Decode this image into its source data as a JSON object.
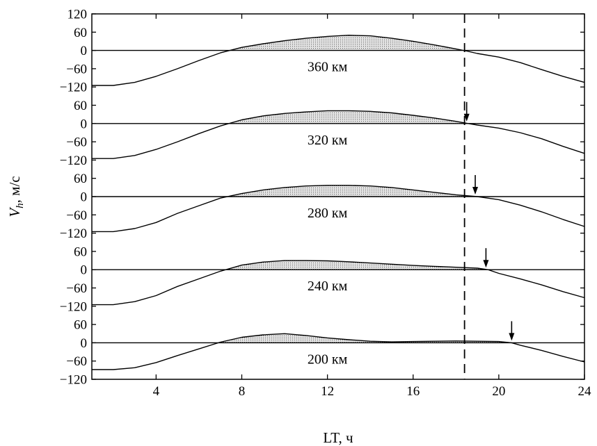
{
  "chart_data": {
    "type": "line",
    "title": "",
    "xlabel": "LT, ч",
    "ylabel_main": "V",
    "ylabel_sub": "h",
    "ylabel_unit": ", м/с",
    "xlim": [
      1,
      24
    ],
    "x_ticks": [
      4,
      8,
      12,
      16,
      20,
      24
    ],
    "ylim": [
      -120,
      60
    ],
    "top_tick": 120,
    "y_ticks": [
      -120,
      -60,
      0,
      60
    ],
    "shade_positive": true,
    "reference_line": {
      "x": 18.4,
      "style": "dashed"
    },
    "series": [
      {
        "name": "360 км",
        "arrow_x": null,
        "x": [
          1,
          2,
          3,
          4,
          5,
          6,
          7,
          8,
          9,
          10,
          11,
          12,
          13,
          14,
          15,
          16,
          17,
          18,
          18.5,
          19,
          20,
          21,
          22,
          23,
          24
        ],
        "y": [
          -115,
          -115,
          -105,
          -85,
          -60,
          -33,
          -8,
          10,
          22,
          32,
          40,
          46,
          50,
          48,
          40,
          30,
          18,
          5,
          -2,
          -10,
          -22,
          -40,
          -63,
          -85,
          -105
        ]
      },
      {
        "name": "320 км",
        "arrow_x": 18.5,
        "x": [
          1,
          2,
          3,
          4,
          5,
          6,
          7,
          8,
          9,
          10,
          11,
          12,
          13,
          14,
          15,
          16,
          17,
          18,
          18.5,
          19,
          20,
          21,
          22,
          23,
          24
        ],
        "y": [
          -115,
          -115,
          -105,
          -85,
          -60,
          -33,
          -8,
          12,
          25,
          33,
          38,
          42,
          42,
          40,
          35,
          27,
          18,
          7,
          1,
          -5,
          -15,
          -30,
          -50,
          -75,
          -98
        ]
      },
      {
        "name": "280 км",
        "arrow_x": 18.9,
        "x": [
          1,
          2,
          3,
          4,
          5,
          6,
          7,
          8,
          9,
          10,
          11,
          12,
          13,
          14,
          15,
          16,
          17,
          18,
          19,
          20,
          21,
          22,
          23,
          24
        ],
        "y": [
          -115,
          -115,
          -105,
          -85,
          -55,
          -30,
          -5,
          10,
          22,
          30,
          35,
          37,
          37,
          35,
          30,
          22,
          14,
          6,
          0,
          -10,
          -28,
          -50,
          -75,
          -98
        ]
      },
      {
        "name": "240 км",
        "arrow_x": 19.4,
        "x": [
          1,
          2,
          3,
          4,
          5,
          6,
          7,
          8,
          9,
          10,
          11,
          12,
          13,
          14,
          15,
          16,
          17,
          18,
          19,
          19.5,
          20,
          21,
          22,
          23,
          24
        ],
        "y": [
          -115,
          -115,
          -105,
          -85,
          -55,
          -30,
          -5,
          15,
          25,
          30,
          30,
          29,
          26,
          22,
          18,
          14,
          11,
          8,
          5,
          0,
          -12,
          -30,
          -50,
          -72,
          -92
        ]
      },
      {
        "name": "200 км",
        "arrow_x": 20.6,
        "x": [
          1,
          2,
          3,
          4,
          5,
          6,
          7,
          8,
          9,
          10,
          11,
          12,
          13,
          14,
          15,
          16,
          17,
          18,
          19,
          20,
          20.6,
          21,
          22,
          23,
          24
        ],
        "y": [
          -88,
          -88,
          -82,
          -65,
          -42,
          -20,
          2,
          18,
          26,
          30,
          24,
          16,
          10,
          5,
          3,
          4,
          5,
          6,
          5,
          4,
          0,
          -8,
          -25,
          -45,
          -63
        ]
      }
    ]
  }
}
